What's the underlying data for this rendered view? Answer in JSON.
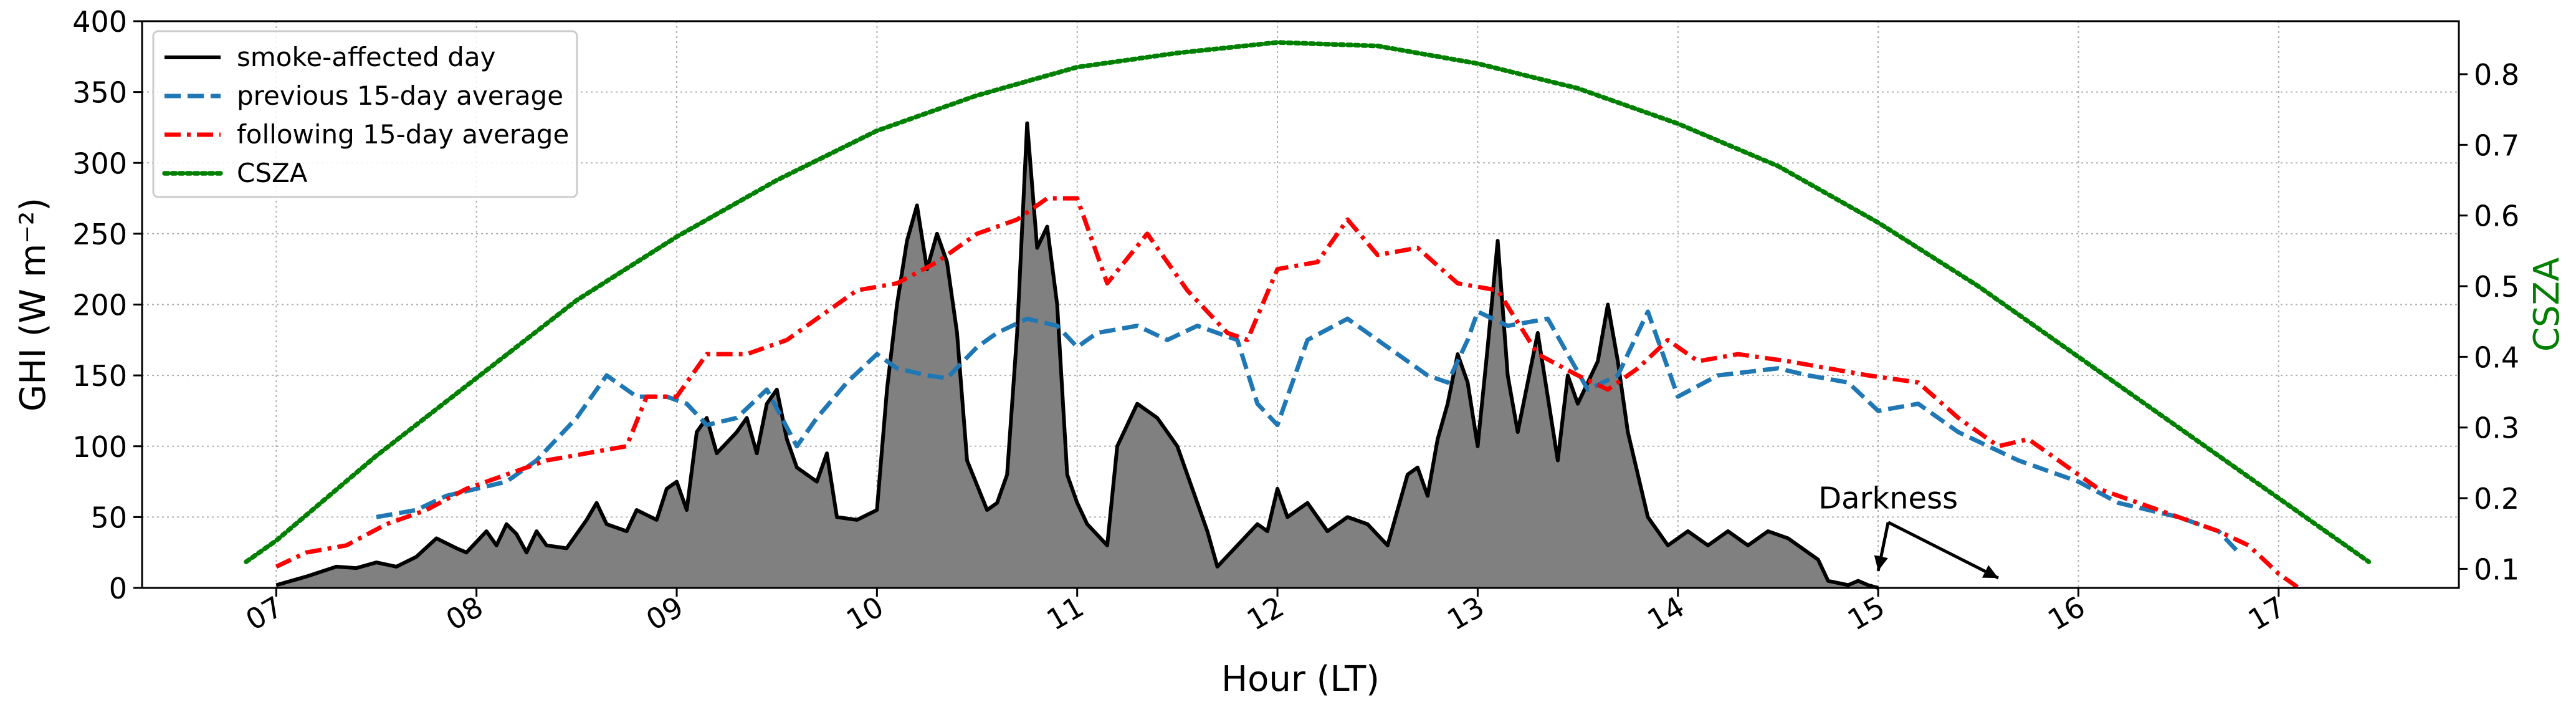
{
  "chart_data": {
    "type": "area",
    "xlabel": "Hour (LT)",
    "ylabel_left": "GHI (W m⁻²)",
    "ylabel_right": "CSZA",
    "x_ticks": [
      "07",
      "08",
      "09",
      "10",
      "11",
      "12",
      "13",
      "14",
      "15",
      "16",
      "17"
    ],
    "xlim": [
      6.33,
      17.9
    ],
    "y_left_ticks": [
      0,
      50,
      100,
      150,
      200,
      250,
      300,
      350,
      400
    ],
    "ylim_left": [
      0,
      400
    ],
    "y_right_ticks": [
      0.1,
      0.2,
      0.3,
      0.4,
      0.5,
      0.6,
      0.7,
      0.8
    ],
    "ylim_right": [
      0.073,
      0.875
    ],
    "grid": true,
    "legend_position": "top-left",
    "right_axis_color": "#008000",
    "series": [
      {
        "name": "smoke-affected day",
        "axis": "left",
        "style": "solid",
        "color": "#000000",
        "fill": "#808080",
        "points": [
          [
            7.0,
            2
          ],
          [
            7.15,
            8
          ],
          [
            7.3,
            15
          ],
          [
            7.4,
            14
          ],
          [
            7.5,
            18
          ],
          [
            7.6,
            15
          ],
          [
            7.7,
            22
          ],
          [
            7.8,
            35
          ],
          [
            7.9,
            28
          ],
          [
            7.95,
            25
          ],
          [
            8.05,
            40
          ],
          [
            8.1,
            30
          ],
          [
            8.15,
            45
          ],
          [
            8.2,
            38
          ],
          [
            8.25,
            25
          ],
          [
            8.3,
            40
          ],
          [
            8.35,
            30
          ],
          [
            8.45,
            28
          ],
          [
            8.55,
            48
          ],
          [
            8.6,
            60
          ],
          [
            8.65,
            45
          ],
          [
            8.75,
            40
          ],
          [
            8.8,
            55
          ],
          [
            8.9,
            48
          ],
          [
            8.95,
            70
          ],
          [
            9.0,
            75
          ],
          [
            9.05,
            55
          ],
          [
            9.1,
            110
          ],
          [
            9.15,
            120
          ],
          [
            9.2,
            95
          ],
          [
            9.3,
            110
          ],
          [
            9.35,
            120
          ],
          [
            9.4,
            95
          ],
          [
            9.45,
            130
          ],
          [
            9.5,
            140
          ],
          [
            9.55,
            105
          ],
          [
            9.6,
            85
          ],
          [
            9.7,
            75
          ],
          [
            9.75,
            95
          ],
          [
            9.8,
            50
          ],
          [
            9.9,
            48
          ],
          [
            10.0,
            55
          ],
          [
            10.05,
            140
          ],
          [
            10.1,
            200
          ],
          [
            10.15,
            245
          ],
          [
            10.2,
            270
          ],
          [
            10.25,
            225
          ],
          [
            10.3,
            250
          ],
          [
            10.35,
            230
          ],
          [
            10.4,
            180
          ],
          [
            10.45,
            90
          ],
          [
            10.55,
            55
          ],
          [
            10.6,
            60
          ],
          [
            10.65,
            80
          ],
          [
            10.7,
            180
          ],
          [
            10.75,
            328
          ],
          [
            10.8,
            240
          ],
          [
            10.85,
            255
          ],
          [
            10.9,
            200
          ],
          [
            10.95,
            80
          ],
          [
            11.0,
            60
          ],
          [
            11.05,
            45
          ],
          [
            11.15,
            30
          ],
          [
            11.2,
            100
          ],
          [
            11.3,
            130
          ],
          [
            11.4,
            120
          ],
          [
            11.5,
            100
          ],
          [
            11.6,
            60
          ],
          [
            11.65,
            40
          ],
          [
            11.7,
            15
          ],
          [
            11.8,
            30
          ],
          [
            11.9,
            45
          ],
          [
            11.95,
            40
          ],
          [
            12.0,
            70
          ],
          [
            12.05,
            50
          ],
          [
            12.15,
            60
          ],
          [
            12.25,
            40
          ],
          [
            12.35,
            50
          ],
          [
            12.45,
            45
          ],
          [
            12.55,
            30
          ],
          [
            12.65,
            80
          ],
          [
            12.7,
            85
          ],
          [
            12.75,
            65
          ],
          [
            12.8,
            105
          ],
          [
            12.85,
            130
          ],
          [
            12.9,
            165
          ],
          [
            12.95,
            145
          ],
          [
            13.0,
            100
          ],
          [
            13.05,
            170
          ],
          [
            13.1,
            245
          ],
          [
            13.15,
            150
          ],
          [
            13.2,
            110
          ],
          [
            13.3,
            180
          ],
          [
            13.4,
            90
          ],
          [
            13.45,
            150
          ],
          [
            13.5,
            130
          ],
          [
            13.6,
            160
          ],
          [
            13.65,
            200
          ],
          [
            13.7,
            160
          ],
          [
            13.75,
            110
          ],
          [
            13.85,
            50
          ],
          [
            13.95,
            30
          ],
          [
            14.05,
            40
          ],
          [
            14.15,
            30
          ],
          [
            14.25,
            40
          ],
          [
            14.35,
            30
          ],
          [
            14.45,
            40
          ],
          [
            14.55,
            35
          ],
          [
            14.6,
            30
          ],
          [
            14.7,
            20
          ],
          [
            14.75,
            5
          ],
          [
            14.85,
            2
          ],
          [
            14.9,
            5
          ],
          [
            14.95,
            2
          ],
          [
            15.0,
            0
          ]
        ]
      },
      {
        "name": "previous 15-day average",
        "axis": "left",
        "style": "dashed",
        "color": "#1f77b4",
        "points": [
          [
            7.5,
            50
          ],
          [
            7.7,
            55
          ],
          [
            7.85,
            65
          ],
          [
            8.0,
            70
          ],
          [
            8.15,
            75
          ],
          [
            8.3,
            90
          ],
          [
            8.5,
            120
          ],
          [
            8.65,
            150
          ],
          [
            8.8,
            135
          ],
          [
            8.95,
            135
          ],
          [
            9.05,
            130
          ],
          [
            9.15,
            115
          ],
          [
            9.3,
            120
          ],
          [
            9.45,
            140
          ],
          [
            9.6,
            100
          ],
          [
            9.7,
            120
          ],
          [
            9.85,
            145
          ],
          [
            10.0,
            165
          ],
          [
            10.1,
            155
          ],
          [
            10.25,
            150
          ],
          [
            10.35,
            148
          ],
          [
            10.5,
            170
          ],
          [
            10.6,
            180
          ],
          [
            10.75,
            190
          ],
          [
            10.9,
            185
          ],
          [
            11.0,
            170
          ],
          [
            11.1,
            180
          ],
          [
            11.3,
            185
          ],
          [
            11.45,
            175
          ],
          [
            11.6,
            185
          ],
          [
            11.7,
            180
          ],
          [
            11.8,
            175
          ],
          [
            11.9,
            130
          ],
          [
            12.0,
            115
          ],
          [
            12.15,
            175
          ],
          [
            12.35,
            190
          ],
          [
            12.55,
            170
          ],
          [
            12.75,
            150
          ],
          [
            12.85,
            145
          ],
          [
            12.95,
            175
          ],
          [
            13.0,
            195
          ],
          [
            13.15,
            185
          ],
          [
            13.35,
            190
          ],
          [
            13.55,
            140
          ],
          [
            13.7,
            150
          ],
          [
            13.85,
            195
          ],
          [
            14.0,
            135
          ],
          [
            14.2,
            150
          ],
          [
            14.5,
            155
          ],
          [
            14.65,
            150
          ],
          [
            14.85,
            145
          ],
          [
            15.0,
            125
          ],
          [
            15.2,
            130
          ],
          [
            15.4,
            110
          ],
          [
            15.7,
            90
          ],
          [
            16.0,
            75
          ],
          [
            16.2,
            60
          ],
          [
            16.5,
            50
          ],
          [
            16.7,
            40
          ],
          [
            16.8,
            25
          ]
        ]
      },
      {
        "name": "following 15-day average",
        "axis": "left",
        "style": "dashdot",
        "color": "#ff0000",
        "points": [
          [
            7.0,
            15
          ],
          [
            7.15,
            25
          ],
          [
            7.35,
            30
          ],
          [
            7.55,
            45
          ],
          [
            7.75,
            55
          ],
          [
            7.95,
            70
          ],
          [
            8.15,
            80
          ],
          [
            8.35,
            90
          ],
          [
            8.55,
            95
          ],
          [
            8.75,
            100
          ],
          [
            8.85,
            135
          ],
          [
            9.0,
            135
          ],
          [
            9.15,
            165
          ],
          [
            9.35,
            165
          ],
          [
            9.55,
            175
          ],
          [
            9.75,
            195
          ],
          [
            9.9,
            210
          ],
          [
            10.1,
            215
          ],
          [
            10.3,
            230
          ],
          [
            10.5,
            250
          ],
          [
            10.7,
            260
          ],
          [
            10.85,
            275
          ],
          [
            11.0,
            275
          ],
          [
            11.15,
            215
          ],
          [
            11.35,
            250
          ],
          [
            11.55,
            210
          ],
          [
            11.75,
            180
          ],
          [
            11.85,
            175
          ],
          [
            12.0,
            225
          ],
          [
            12.2,
            230
          ],
          [
            12.35,
            260
          ],
          [
            12.5,
            235
          ],
          [
            12.7,
            240
          ],
          [
            12.9,
            215
          ],
          [
            13.1,
            210
          ],
          [
            13.3,
            165
          ],
          [
            13.5,
            150
          ],
          [
            13.65,
            140
          ],
          [
            13.8,
            155
          ],
          [
            13.95,
            175
          ],
          [
            14.1,
            160
          ],
          [
            14.3,
            165
          ],
          [
            14.55,
            160
          ],
          [
            14.75,
            155
          ],
          [
            14.95,
            150
          ],
          [
            15.2,
            145
          ],
          [
            15.4,
            120
          ],
          [
            15.6,
            100
          ],
          [
            15.75,
            105
          ],
          [
            15.9,
            90
          ],
          [
            16.1,
            70
          ],
          [
            16.3,
            60
          ],
          [
            16.5,
            50
          ],
          [
            16.7,
            40
          ],
          [
            16.85,
            30
          ],
          [
            17.0,
            10
          ],
          [
            17.1,
            0
          ]
        ]
      },
      {
        "name": "CSZA",
        "axis": "right",
        "style": "dotted",
        "color": "#008000",
        "points": [
          [
            6.85,
            0.11
          ],
          [
            7.0,
            0.14
          ],
          [
            7.5,
            0.26
          ],
          [
            8.0,
            0.37
          ],
          [
            8.5,
            0.48
          ],
          [
            9.0,
            0.57
          ],
          [
            9.5,
            0.65
          ],
          [
            10.0,
            0.72
          ],
          [
            10.5,
            0.77
          ],
          [
            11.0,
            0.81
          ],
          [
            11.5,
            0.83
          ],
          [
            12.0,
            0.845
          ],
          [
            12.5,
            0.84
          ],
          [
            13.0,
            0.815
          ],
          [
            13.5,
            0.78
          ],
          [
            14.0,
            0.73
          ],
          [
            14.5,
            0.67
          ],
          [
            15.0,
            0.59
          ],
          [
            15.5,
            0.5
          ],
          [
            16.0,
            0.4
          ],
          [
            16.5,
            0.3
          ],
          [
            17.0,
            0.2
          ],
          [
            17.45,
            0.11
          ]
        ]
      }
    ],
    "annotations": [
      {
        "text": "Darkness",
        "x": 15.05,
        "y": 56,
        "arrows_to": [
          [
            15.0,
            12
          ],
          [
            15.6,
            7
          ]
        ]
      }
    ]
  }
}
